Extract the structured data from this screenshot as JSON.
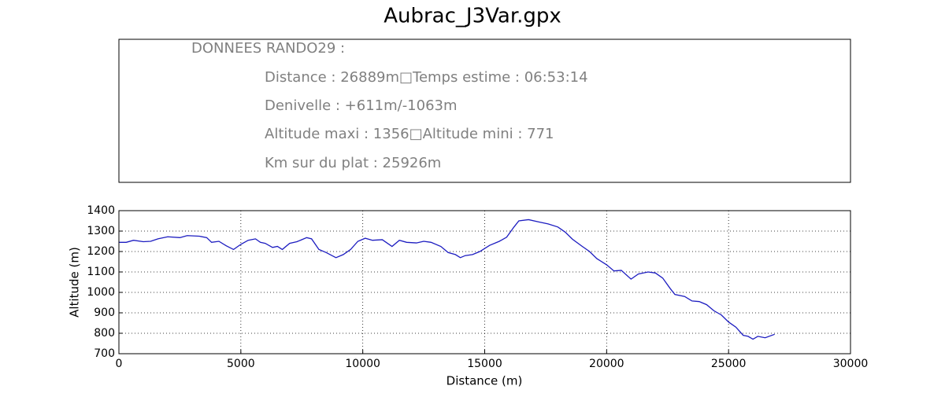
{
  "chart_data": {
    "type": "line",
    "title": "Aubrac_J3Var.gpx",
    "info_lines": [
      "DONNEES RANDO29  :",
      "Distance : 26889m□Temps estime : 06:53:14",
      "Denivelle : +611m/-1063m",
      "Altitude maxi : 1356□Altitude mini : 771",
      "Km sur du plat : 25926m"
    ],
    "xlabel": "Distance (m)",
    "ylabel": "Altitude (m)",
    "x": [
      0,
      300,
      600,
      1000,
      1300,
      1600,
      2000,
      2500,
      2800,
      3300,
      3600,
      3800,
      4100,
      4400,
      4700,
      5000,
      5300,
      5600,
      5800,
      6000,
      6300,
      6500,
      6700,
      7000,
      7300,
      7700,
      7900,
      8200,
      8500,
      8900,
      9200,
      9500,
      9800,
      10100,
      10400,
      10800,
      11200,
      11500,
      11800,
      12200,
      12500,
      12800,
      13200,
      13500,
      13800,
      14000,
      14200,
      14500,
      14800,
      15200,
      15600,
      15900,
      16200,
      16400,
      16800,
      17200,
      17600,
      18000,
      18300,
      18600,
      19000,
      19300,
      19600,
      20000,
      20300,
      20600,
      21000,
      21300,
      21700,
      22000,
      22300,
      22600,
      22800,
      23200,
      23500,
      23800,
      24100,
      24400,
      24700,
      25000,
      25300,
      25600,
      25800,
      26000,
      26200,
      26500,
      26889
    ],
    "series": [
      {
        "name": "Altitude",
        "color": "#1c1cc0",
        "values": [
          1245,
          1245,
          1255,
          1248,
          1250,
          1262,
          1272,
          1268,
          1278,
          1275,
          1268,
          1245,
          1250,
          1228,
          1210,
          1235,
          1255,
          1262,
          1245,
          1240,
          1220,
          1225,
          1210,
          1240,
          1248,
          1268,
          1262,
          1210,
          1195,
          1170,
          1185,
          1210,
          1250,
          1265,
          1255,
          1258,
          1225,
          1255,
          1245,
          1242,
          1250,
          1245,
          1225,
          1195,
          1185,
          1170,
          1180,
          1185,
          1200,
          1230,
          1250,
          1270,
          1320,
          1350,
          1356,
          1345,
          1335,
          1320,
          1295,
          1260,
          1225,
          1200,
          1165,
          1135,
          1105,
          1108,
          1065,
          1090,
          1100,
          1095,
          1070,
          1020,
          990,
          980,
          958,
          955,
          940,
          910,
          890,
          855,
          830,
          790,
          785,
          771,
          785,
          778,
          795
        ]
      }
    ],
    "xlim": [
      0,
      30000
    ],
    "xticks": [
      0,
      5000,
      10000,
      15000,
      20000,
      25000,
      30000
    ],
    "ylim": [
      700,
      1400
    ],
    "yticks": [
      700,
      800,
      900,
      1000,
      1100,
      1200,
      1300,
      1400
    ],
    "grid": true
  }
}
